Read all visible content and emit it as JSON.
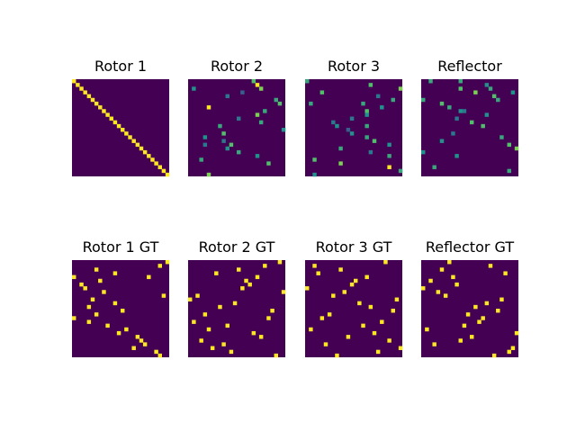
{
  "figure": {
    "background": "#ffffff",
    "colormap": "viridis",
    "colors": {
      "background_cell": "#440154",
      "max_cell": "#fde725"
    }
  },
  "chart_data": [
    {
      "type": "heatmap",
      "title": "Rotor 1",
      "size": 26,
      "cells": [
        [
          0,
          0,
          1
        ],
        [
          1,
          1,
          1
        ],
        [
          2,
          2,
          1
        ],
        [
          3,
          3,
          1
        ],
        [
          4,
          4,
          1
        ],
        [
          5,
          5,
          1
        ],
        [
          6,
          6,
          1
        ],
        [
          7,
          7,
          1
        ],
        [
          8,
          8,
          1
        ],
        [
          9,
          9,
          1
        ],
        [
          10,
          10,
          1
        ],
        [
          11,
          11,
          1
        ],
        [
          12,
          12,
          1
        ],
        [
          13,
          13,
          1
        ],
        [
          14,
          14,
          1
        ],
        [
          15,
          15,
          1
        ],
        [
          16,
          16,
          1
        ],
        [
          17,
          17,
          1
        ],
        [
          18,
          18,
          1
        ],
        [
          19,
          19,
          1
        ],
        [
          20,
          20,
          1
        ],
        [
          21,
          21,
          1
        ],
        [
          22,
          22,
          1
        ],
        [
          23,
          23,
          1
        ],
        [
          24,
          24,
          1
        ],
        [
          25,
          25,
          1
        ]
      ]
    },
    {
      "type": "heatmap",
      "title": "Rotor 2",
      "size": 26,
      "cells": [
        [
          0,
          17,
          0.7
        ],
        [
          1,
          18,
          1
        ],
        [
          2,
          1,
          0.5
        ],
        [
          2,
          19,
          0.8
        ],
        [
          3,
          14,
          0.3
        ],
        [
          4,
          10,
          0.4
        ],
        [
          5,
          23,
          0.6
        ],
        [
          6,
          24,
          0.7
        ],
        [
          7,
          5,
          1
        ],
        [
          8,
          20,
          0.6
        ],
        [
          9,
          18,
          0.8
        ],
        [
          10,
          13,
          0.4
        ],
        [
          11,
          19,
          0.6
        ],
        [
          12,
          8,
          0.6
        ],
        [
          13,
          25,
          0.5
        ],
        [
          14,
          9,
          0.7
        ],
        [
          15,
          4,
          0.5
        ],
        [
          16,
          9,
          0.4
        ],
        [
          17,
          4,
          0.4
        ],
        [
          17,
          11,
          0.7
        ],
        [
          18,
          10,
          0.5
        ],
        [
          19,
          13,
          0.6
        ],
        [
          20,
          18,
          0.5
        ],
        [
          21,
          3,
          0.6
        ],
        [
          22,
          21,
          0.7
        ],
        [
          25,
          5,
          0.8
        ]
      ]
    },
    {
      "type": "heatmap",
      "title": "Rotor 3",
      "size": 26,
      "cells": [
        [
          0,
          0,
          0.6
        ],
        [
          1,
          17,
          0.7
        ],
        [
          2,
          25,
          0.8
        ],
        [
          3,
          4,
          0.7
        ],
        [
          4,
          19,
          0.4
        ],
        [
          5,
          23,
          0.6
        ],
        [
          6,
          1,
          0.6
        ],
        [
          6,
          15,
          0.6
        ],
        [
          7,
          20,
          0.5
        ],
        [
          8,
          16,
          0.7
        ],
        [
          9,
          16,
          0.5
        ],
        [
          10,
          12,
          0.4
        ],
        [
          11,
          7,
          0.4
        ],
        [
          12,
          8,
          0.5
        ],
        [
          12,
          16,
          0.6
        ],
        [
          13,
          11,
          0.3
        ],
        [
          14,
          12,
          0.5
        ],
        [
          15,
          16,
          0.6
        ],
        [
          16,
          18,
          0.7
        ],
        [
          17,
          22,
          0.5
        ],
        [
          18,
          9,
          0.6
        ],
        [
          19,
          17,
          0.4
        ],
        [
          20,
          22,
          0.6
        ],
        [
          21,
          2,
          0.7
        ],
        [
          22,
          9,
          0.8
        ],
        [
          23,
          22,
          1
        ],
        [
          24,
          25,
          0.6
        ],
        [
          25,
          2,
          0.5
        ]
      ]
    },
    {
      "type": "heatmap",
      "title": "Reflector",
      "size": 26,
      "cells": [
        [
          0,
          2,
          0.6
        ],
        [
          0,
          10,
          0.6
        ],
        [
          1,
          17,
          0.5
        ],
        [
          2,
          10,
          0.7
        ],
        [
          2,
          18,
          0.6
        ],
        [
          3,
          14,
          0.8
        ],
        [
          3,
          24,
          0.5
        ],
        [
          4,
          19,
          0.7
        ],
        [
          5,
          0,
          0.6
        ],
        [
          5,
          20,
          0.6
        ],
        [
          6,
          5,
          0.7
        ],
        [
          7,
          7,
          0.6
        ],
        [
          8,
          10,
          0.5
        ],
        [
          8,
          11,
          0.4
        ],
        [
          9,
          17,
          0.5
        ],
        [
          10,
          9,
          0.4
        ],
        [
          11,
          13,
          0.7
        ],
        [
          12,
          16,
          0.7
        ],
        [
          14,
          8,
          0.4
        ],
        [
          15,
          21,
          0.6
        ],
        [
          16,
          5,
          0.5
        ],
        [
          17,
          23,
          0.7
        ],
        [
          18,
          25,
          0.8
        ],
        [
          19,
          0,
          0.5
        ],
        [
          20,
          9,
          0.5
        ],
        [
          23,
          3,
          0.6
        ],
        [
          24,
          23,
          0.6
        ]
      ]
    },
    {
      "type": "heatmap",
      "title": "Rotor 1 GT",
      "size": 26,
      "cells": [
        [
          0,
          25,
          1
        ],
        [
          1,
          23,
          1
        ],
        [
          2,
          6,
          1
        ],
        [
          3,
          11,
          1
        ],
        [
          4,
          0,
          1
        ],
        [
          4,
          20,
          1
        ],
        [
          5,
          7,
          1
        ],
        [
          6,
          2,
          1
        ],
        [
          7,
          3,
          1
        ],
        [
          8,
          8,
          1
        ],
        [
          9,
          24,
          1
        ],
        [
          10,
          5,
          1
        ],
        [
          11,
          11,
          1
        ],
        [
          12,
          4,
          1
        ],
        [
          13,
          13,
          1
        ],
        [
          14,
          6,
          1
        ],
        [
          15,
          0,
          1
        ],
        [
          16,
          4,
          1
        ],
        [
          17,
          9,
          1
        ],
        [
          18,
          14,
          1
        ],
        [
          19,
          12,
          1
        ],
        [
          20,
          17,
          1
        ],
        [
          21,
          18,
          1
        ],
        [
          22,
          19,
          1
        ],
        [
          23,
          16,
          1
        ],
        [
          24,
          22,
          1
        ],
        [
          25,
          23,
          1
        ]
      ]
    },
    {
      "type": "heatmap",
      "title": "Rotor 2 GT",
      "size": 26,
      "cells": [
        [
          0,
          24,
          1
        ],
        [
          1,
          20,
          1
        ],
        [
          2,
          13,
          1
        ],
        [
          3,
          7,
          1
        ],
        [
          4,
          18,
          1
        ],
        [
          5,
          15,
          1
        ],
        [
          6,
          16,
          1
        ],
        [
          7,
          14,
          1
        ],
        [
          8,
          25,
          1
        ],
        [
          9,
          2,
          1
        ],
        [
          10,
          0,
          1
        ],
        [
          11,
          12,
          1
        ],
        [
          12,
          8,
          1
        ],
        [
          13,
          22,
          1
        ],
        [
          14,
          4,
          1
        ],
        [
          15,
          21,
          1
        ],
        [
          16,
          1,
          1
        ],
        [
          17,
          10,
          1
        ],
        [
          18,
          5,
          1
        ],
        [
          19,
          17,
          1
        ],
        [
          20,
          19,
          1
        ],
        [
          21,
          3,
          1
        ],
        [
          22,
          9,
          1
        ],
        [
          23,
          6,
          1
        ],
        [
          24,
          11,
          1
        ],
        [
          25,
          23,
          1
        ]
      ]
    },
    {
      "type": "heatmap",
      "title": "Rotor 3 GT",
      "size": 26,
      "cells": [
        [
          0,
          21,
          1
        ],
        [
          1,
          2,
          1
        ],
        [
          2,
          9,
          1
        ],
        [
          3,
          3,
          1
        ],
        [
          4,
          16,
          1
        ],
        [
          5,
          13,
          1
        ],
        [
          6,
          12,
          1
        ],
        [
          7,
          0,
          1
        ],
        [
          8,
          10,
          1
        ],
        [
          9,
          7,
          1
        ],
        [
          10,
          24,
          1
        ],
        [
          11,
          14,
          1
        ],
        [
          12,
          17,
          1
        ],
        [
          13,
          23,
          1
        ],
        [
          14,
          6,
          1
        ],
        [
          15,
          4,
          1
        ],
        [
          16,
          20,
          1
        ],
        [
          17,
          15,
          1
        ],
        [
          18,
          1,
          1
        ],
        [
          19,
          18,
          1
        ],
        [
          20,
          11,
          1
        ],
        [
          21,
          22,
          1
        ],
        [
          22,
          5,
          1
        ],
        [
          23,
          25,
          1
        ],
        [
          24,
          19,
          1
        ],
        [
          25,
          8,
          1
        ]
      ]
    },
    {
      "type": "heatmap",
      "title": "Reflector GT",
      "size": 26,
      "cells": [
        [
          0,
          7,
          1
        ],
        [
          1,
          18,
          1
        ],
        [
          2,
          5,
          1
        ],
        [
          3,
          22,
          1
        ],
        [
          4,
          8,
          1
        ],
        [
          5,
          2,
          1
        ],
        [
          6,
          9,
          1
        ],
        [
          7,
          0,
          1
        ],
        [
          8,
          4,
          1
        ],
        [
          9,
          6,
          1
        ],
        [
          10,
          21,
          1
        ],
        [
          11,
          17,
          1
        ],
        [
          12,
          14,
          1
        ],
        [
          13,
          20,
          1
        ],
        [
          14,
          12,
          1
        ],
        [
          15,
          16,
          1
        ],
        [
          16,
          15,
          1
        ],
        [
          17,
          11,
          1
        ],
        [
          18,
          1,
          1
        ],
        [
          19,
          25,
          1
        ],
        [
          20,
          13,
          1
        ],
        [
          21,
          10,
          1
        ],
        [
          22,
          3,
          1
        ],
        [
          23,
          24,
          1
        ],
        [
          24,
          23,
          1
        ],
        [
          25,
          19,
          1
        ]
      ]
    }
  ]
}
